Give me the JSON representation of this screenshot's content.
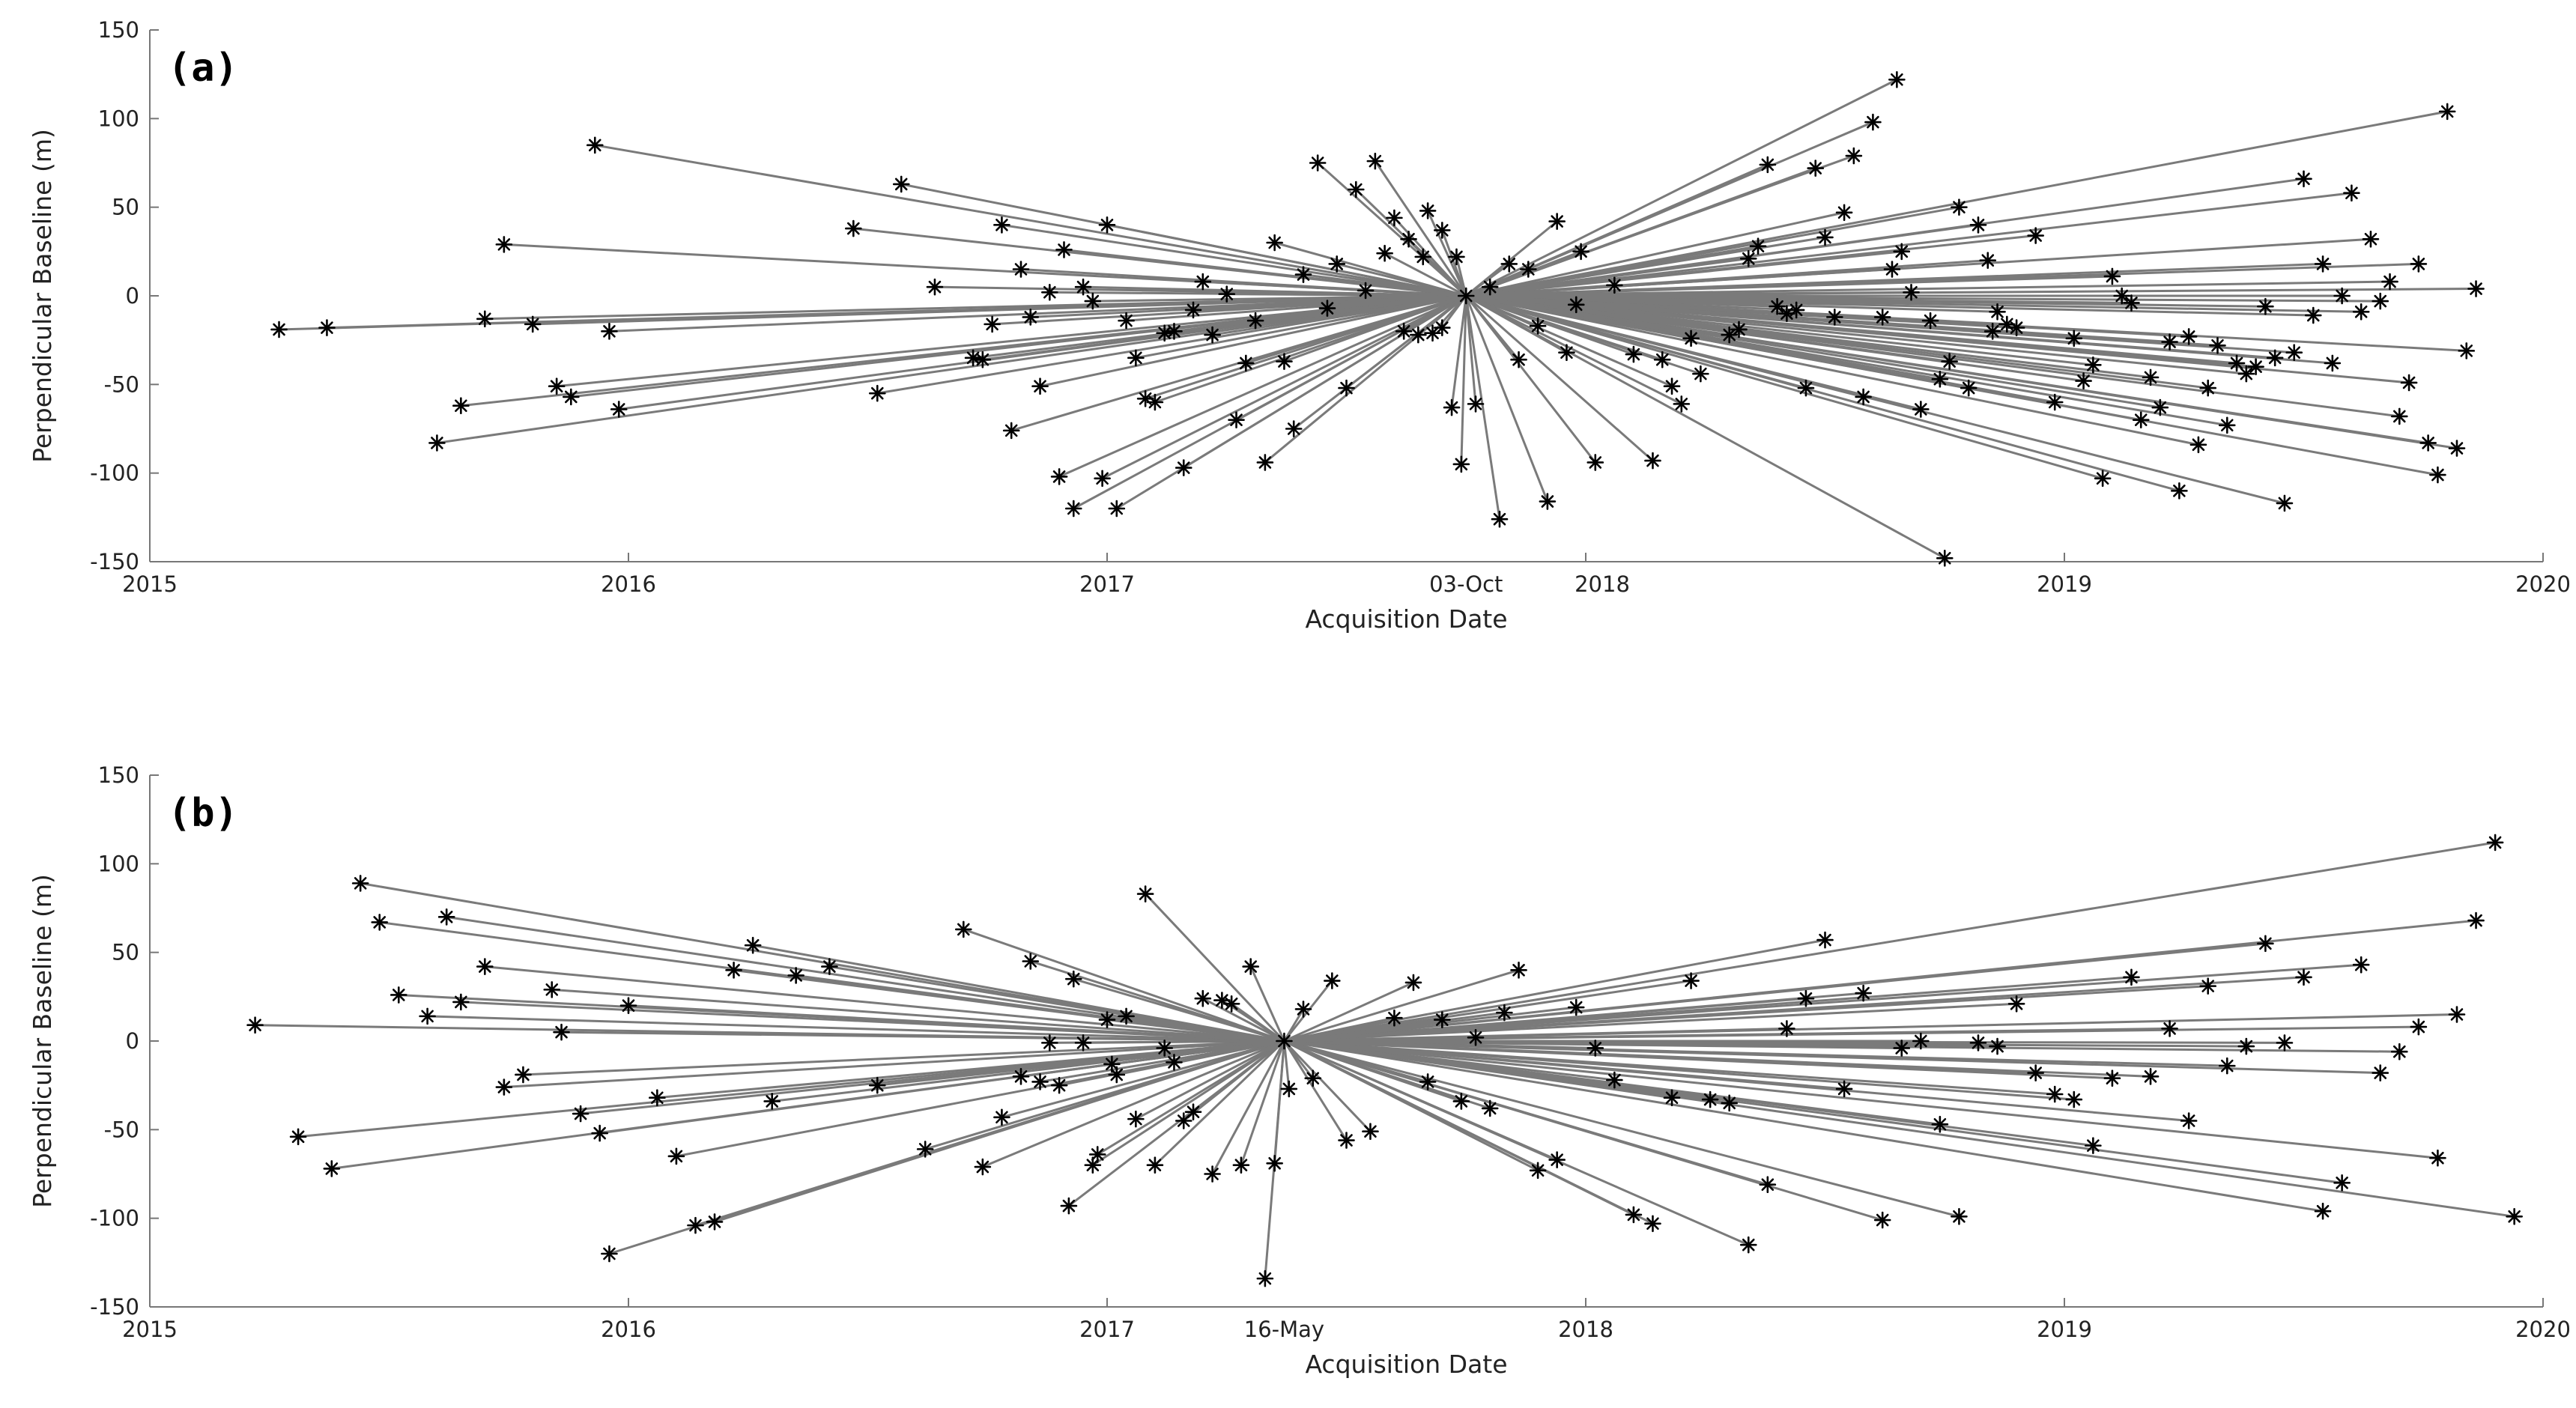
{
  "chart_data": [
    {
      "type": "scatter",
      "panel_label": "(a)",
      "xlabel": "Acquisition Date",
      "ylabel": "Perpendicular Baseline (m)",
      "xlim": [
        2015,
        2020
      ],
      "ylim": [
        -150,
        150
      ],
      "xticks": [
        2015,
        2016,
        2017,
        2018,
        2019,
        2020
      ],
      "xtick_labels": [
        "2015",
        "2016",
        "2017",
        "2018",
        "2019",
        "2020"
      ],
      "yticks": [
        -150,
        -100,
        -50,
        0,
        50,
        100,
        150
      ],
      "reference": {
        "label": "03-Oct",
        "x": 2017.75,
        "y": 0
      },
      "points": [
        [
          2015.27,
          -19
        ],
        [
          2015.37,
          -18
        ],
        [
          2015.6,
          -83
        ],
        [
          2015.65,
          -62
        ],
        [
          2015.7,
          -13
        ],
        [
          2015.74,
          29
        ],
        [
          2015.8,
          -16
        ],
        [
          2015.85,
          -51
        ],
        [
          2015.88,
          -57
        ],
        [
          2015.93,
          85
        ],
        [
          2015.96,
          -20
        ],
        [
          2015.98,
          -64
        ],
        [
          2016.47,
          38
        ],
        [
          2016.52,
          -55
        ],
        [
          2016.57,
          63
        ],
        [
          2016.64,
          5
        ],
        [
          2016.72,
          -35
        ],
        [
          2016.74,
          -36
        ],
        [
          2016.76,
          -16
        ],
        [
          2016.78,
          40
        ],
        [
          2016.8,
          -76
        ],
        [
          2016.82,
          15
        ],
        [
          2016.84,
          -12
        ],
        [
          2016.86,
          -51
        ],
        [
          2016.88,
          2
        ],
        [
          2016.9,
          -102
        ],
        [
          2016.91,
          26
        ],
        [
          2016.93,
          -120
        ],
        [
          2016.95,
          5
        ],
        [
          2016.97,
          -3
        ],
        [
          2016.99,
          -103
        ],
        [
          2017.0,
          40
        ],
        [
          2017.02,
          -120
        ],
        [
          2017.04,
          -14
        ],
        [
          2017.06,
          -35
        ],
        [
          2017.08,
          -58
        ],
        [
          2017.1,
          -60
        ],
        [
          2017.12,
          -21
        ],
        [
          2017.14,
          -20
        ],
        [
          2017.16,
          -97
        ],
        [
          2017.18,
          -8
        ],
        [
          2017.2,
          8
        ],
        [
          2017.22,
          -22
        ],
        [
          2017.25,
          1
        ],
        [
          2017.27,
          -70
        ],
        [
          2017.29,
          -38
        ],
        [
          2017.31,
          -14
        ],
        [
          2017.33,
          -94
        ],
        [
          2017.35,
          30
        ],
        [
          2017.37,
          -37
        ],
        [
          2017.39,
          -75
        ],
        [
          2017.41,
          12
        ],
        [
          2017.44,
          75
        ],
        [
          2017.46,
          -7
        ],
        [
          2017.48,
          18
        ],
        [
          2017.5,
          -52
        ],
        [
          2017.52,
          60
        ],
        [
          2017.54,
          3
        ],
        [
          2017.56,
          76
        ],
        [
          2017.58,
          24
        ],
        [
          2017.6,
          44
        ],
        [
          2017.62,
          -20
        ],
        [
          2017.63,
          32
        ],
        [
          2017.65,
          -22
        ],
        [
          2017.66,
          22
        ],
        [
          2017.67,
          48
        ],
        [
          2017.68,
          -21
        ],
        [
          2017.7,
          -18
        ],
        [
          2017.7,
          37
        ],
        [
          2017.72,
          -63
        ],
        [
          2017.73,
          22
        ],
        [
          2017.74,
          -95
        ],
        [
          2017.77,
          -61
        ],
        [
          2017.8,
          5
        ],
        [
          2017.82,
          -126
        ],
        [
          2017.84,
          18
        ],
        [
          2017.86,
          -36
        ],
        [
          2017.88,
          15
        ],
        [
          2017.9,
          -17
        ],
        [
          2017.92,
          -116
        ],
        [
          2017.94,
          42
        ],
        [
          2017.96,
          -32
        ],
        [
          2017.98,
          -5
        ],
        [
          2017.99,
          25
        ],
        [
          2018.02,
          -94
        ],
        [
          2018.06,
          6
        ],
        [
          2018.1,
          -33
        ],
        [
          2018.14,
          -93
        ],
        [
          2018.16,
          -36
        ],
        [
          2018.18,
          -51
        ],
        [
          2018.2,
          -61
        ],
        [
          2018.22,
          -24
        ],
        [
          2018.24,
          -44
        ],
        [
          2018.3,
          -22
        ],
        [
          2018.32,
          -19
        ],
        [
          2018.34,
          21
        ],
        [
          2018.36,
          28
        ],
        [
          2018.38,
          74
        ],
        [
          2018.4,
          -6
        ],
        [
          2018.42,
          -10
        ],
        [
          2018.44,
          -8
        ],
        [
          2018.46,
          -52
        ],
        [
          2018.48,
          72
        ],
        [
          2018.5,
          33
        ],
        [
          2018.52,
          -12
        ],
        [
          2018.54,
          47
        ],
        [
          2018.56,
          79
        ],
        [
          2018.58,
          -57
        ],
        [
          2018.6,
          98
        ],
        [
          2018.62,
          -12
        ],
        [
          2018.64,
          15
        ],
        [
          2018.66,
          25
        ],
        [
          2018.68,
          2
        ],
        [
          2018.7,
          -64
        ],
        [
          2018.72,
          -14
        ],
        [
          2018.74,
          -47
        ],
        [
          2018.76,
          -37
        ],
        [
          2018.78,
          50
        ],
        [
          2018.8,
          -52
        ],
        [
          2018.82,
          40
        ],
        [
          2018.84,
          20
        ],
        [
          2018.86,
          -9
        ],
        [
          2018.88,
          -16
        ],
        [
          2018.9,
          -18
        ],
        [
          2018.94,
          34
        ],
        [
          2018.98,
          -60
        ],
        [
          2019.02,
          -24
        ],
        [
          2019.04,
          -48
        ],
        [
          2019.06,
          -39
        ],
        [
          2019.08,
          -103
        ],
        [
          2019.1,
          11
        ],
        [
          2019.12,
          0
        ],
        [
          2019.14,
          -4
        ],
        [
          2019.16,
          -70
        ],
        [
          2019.18,
          -46
        ],
        [
          2019.2,
          -63
        ],
        [
          2019.22,
          -26
        ],
        [
          2019.24,
          -110
        ],
        [
          2019.26,
          -23
        ],
        [
          2019.28,
          -84
        ],
        [
          2019.3,
          -52
        ],
        [
          2019.32,
          -28
        ],
        [
          2019.34,
          -73
        ],
        [
          2019.36,
          -38
        ],
        [
          2019.38,
          -44
        ],
        [
          2019.4,
          -40
        ],
        [
          2019.42,
          -6
        ],
        [
          2019.44,
          -35
        ],
        [
          2019.46,
          -117
        ],
        [
          2019.48,
          -32
        ],
        [
          2019.5,
          66
        ],
        [
          2019.52,
          -11
        ],
        [
          2019.54,
          18
        ],
        [
          2019.56,
          -38
        ],
        [
          2019.58,
          0
        ],
        [
          2019.6,
          58
        ],
        [
          2019.62,
          -9
        ],
        [
          2019.64,
          32
        ],
        [
          2019.66,
          -3
        ],
        [
          2019.68,
          8
        ],
        [
          2019.7,
          -68
        ],
        [
          2019.72,
          -49
        ],
        [
          2019.74,
          18
        ],
        [
          2019.76,
          -83
        ],
        [
          2019.78,
          -101
        ],
        [
          2019.8,
          104
        ],
        [
          2019.82,
          -86
        ],
        [
          2019.84,
          -31
        ],
        [
          2019.86,
          4
        ],
        [
          2018.65,
          122
        ],
        [
          2018.75,
          -148
        ],
        [
          2018.85,
          -20
        ]
      ]
    },
    {
      "type": "scatter",
      "panel_label": "(b)",
      "xlabel": "Acquisition Date",
      "ylabel": "Perpendicular Baseline (m)",
      "xlim": [
        2015,
        2020
      ],
      "ylim": [
        -150,
        150
      ],
      "xticks": [
        2015,
        2016,
        2017,
        2018,
        2019,
        2020
      ],
      "xtick_labels": [
        "2015",
        "2016",
        "2017",
        "2018",
        "2019",
        "2020"
      ],
      "yticks": [
        -150,
        -100,
        -50,
        0,
        50,
        100,
        150
      ],
      "reference": {
        "label": "16-May",
        "x": 2017.37,
        "y": 0
      },
      "points": [
        [
          2015.22,
          9
        ],
        [
          2015.31,
          -54
        ],
        [
          2015.38,
          -72
        ],
        [
          2015.44,
          89
        ],
        [
          2015.48,
          67
        ],
        [
          2015.52,
          26
        ],
        [
          2015.58,
          14
        ],
        [
          2015.62,
          70
        ],
        [
          2015.65,
          22
        ],
        [
          2015.7,
          42
        ],
        [
          2015.74,
          -26
        ],
        [
          2015.78,
          -19
        ],
        [
          2015.84,
          29
        ],
        [
          2015.86,
          5
        ],
        [
          2015.9,
          -41
        ],
        [
          2015.94,
          -52
        ],
        [
          2015.96,
          -120
        ],
        [
          2016.0,
          20
        ],
        [
          2016.06,
          -32
        ],
        [
          2016.1,
          -65
        ],
        [
          2016.14,
          -104
        ],
        [
          2016.18,
          -102
        ],
        [
          2016.22,
          40
        ],
        [
          2016.26,
          54
        ],
        [
          2016.3,
          -34
        ],
        [
          2016.35,
          37
        ],
        [
          2016.42,
          42
        ],
        [
          2016.52,
          -25
        ],
        [
          2016.62,
          -61
        ],
        [
          2016.7,
          63
        ],
        [
          2016.74,
          -71
        ],
        [
          2016.78,
          -43
        ],
        [
          2016.82,
          -20
        ],
        [
          2016.84,
          45
        ],
        [
          2016.86,
          -23
        ],
        [
          2016.88,
          -1
        ],
        [
          2016.9,
          -25
        ],
        [
          2016.92,
          -93
        ],
        [
          2016.93,
          35
        ],
        [
          2016.95,
          -1
        ],
        [
          2016.97,
          -70
        ],
        [
          2016.98,
          -64
        ],
        [
          2017.0,
          12
        ],
        [
          2017.01,
          -13
        ],
        [
          2017.02,
          -19
        ],
        [
          2017.04,
          14
        ],
        [
          2017.06,
          -44
        ],
        [
          2017.08,
          83
        ],
        [
          2017.1,
          -70
        ],
        [
          2017.12,
          -4
        ],
        [
          2017.14,
          -12
        ],
        [
          2017.16,
          -45
        ],
        [
          2017.18,
          -40
        ],
        [
          2017.2,
          24
        ],
        [
          2017.22,
          -75
        ],
        [
          2017.24,
          23
        ],
        [
          2017.26,
          21
        ],
        [
          2017.28,
          -70
        ],
        [
          2017.3,
          42
        ],
        [
          2017.33,
          -134
        ],
        [
          2017.35,
          -69
        ],
        [
          2017.38,
          -27
        ],
        [
          2017.41,
          18
        ],
        [
          2017.43,
          -21
        ],
        [
          2017.47,
          34
        ],
        [
          2017.5,
          -56
        ],
        [
          2017.55,
          -51
        ],
        [
          2017.6,
          13
        ],
        [
          2017.64,
          33
        ],
        [
          2017.67,
          -23
        ],
        [
          2017.7,
          12
        ],
        [
          2017.74,
          -34
        ],
        [
          2017.77,
          2
        ],
        [
          2017.8,
          -38
        ],
        [
          2017.83,
          16
        ],
        [
          2017.86,
          40
        ],
        [
          2017.9,
          -73
        ],
        [
          2017.94,
          -67
        ],
        [
          2017.98,
          19
        ],
        [
          2018.02,
          -4
        ],
        [
          2018.06,
          -22
        ],
        [
          2018.1,
          -98
        ],
        [
          2018.14,
          -103
        ],
        [
          2018.18,
          -32
        ],
        [
          2018.22,
          34
        ],
        [
          2018.26,
          -33
        ],
        [
          2018.3,
          -35
        ],
        [
          2018.34,
          -115
        ],
        [
          2018.38,
          -81
        ],
        [
          2018.42,
          7
        ],
        [
          2018.46,
          24
        ],
        [
          2018.5,
          57
        ],
        [
          2018.54,
          -27
        ],
        [
          2018.58,
          27
        ],
        [
          2018.62,
          -101
        ],
        [
          2018.66,
          -4
        ],
        [
          2018.7,
          0
        ],
        [
          2018.74,
          -47
        ],
        [
          2018.78,
          -99
        ],
        [
          2018.82,
          -1
        ],
        [
          2018.86,
          -3
        ],
        [
          2018.9,
          21
        ],
        [
          2018.94,
          -18
        ],
        [
          2018.98,
          -30
        ],
        [
          2019.02,
          -33
        ],
        [
          2019.06,
          -59
        ],
        [
          2019.1,
          -21
        ],
        [
          2019.14,
          36
        ],
        [
          2019.18,
          -20
        ],
        [
          2019.22,
          7
        ],
        [
          2019.26,
          -45
        ],
        [
          2019.3,
          31
        ],
        [
          2019.34,
          -14
        ],
        [
          2019.38,
          -3
        ],
        [
          2019.42,
          55
        ],
        [
          2019.46,
          -1
        ],
        [
          2019.5,
          36
        ],
        [
          2019.54,
          -96
        ],
        [
          2019.58,
          -80
        ],
        [
          2019.62,
          43
        ],
        [
          2019.66,
          -18
        ],
        [
          2019.7,
          -6
        ],
        [
          2019.74,
          8
        ],
        [
          2019.78,
          -66
        ],
        [
          2019.82,
          15
        ],
        [
          2019.86,
          68
        ],
        [
          2019.9,
          112
        ],
        [
          2019.94,
          -99
        ]
      ]
    }
  ]
}
